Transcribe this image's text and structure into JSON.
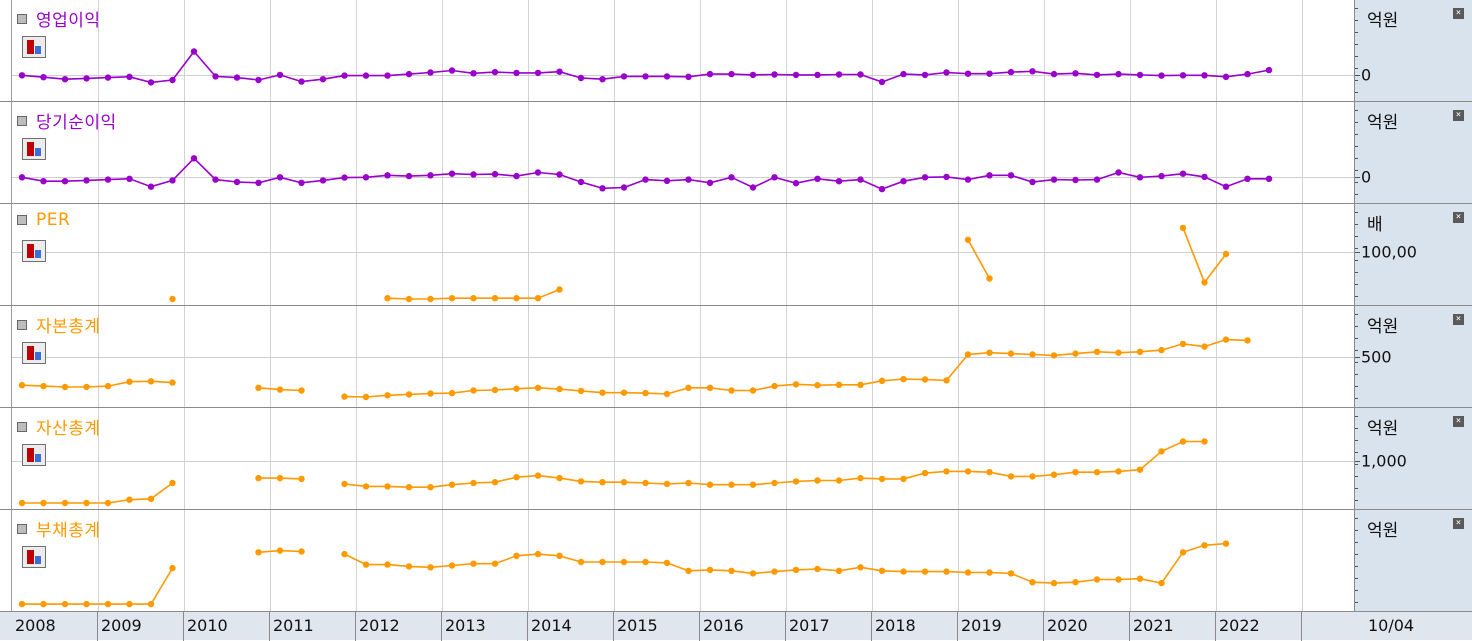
{
  "colors": {
    "purple": "#9900cc",
    "orange": "#ff9900",
    "axis_bg": "#d9e3ee",
    "grid": "#d3d3d3"
  },
  "x_axis": {
    "years": [
      "2008",
      "2009",
      "2010",
      "2011",
      "2012",
      "2013",
      "2014",
      "2015",
      "2016",
      "2017",
      "2018",
      "2019",
      "2020",
      "2021",
      "2022"
    ],
    "current_date": "10/04"
  },
  "icons": {
    "chart_toggle": "chart-toggle-icon",
    "close": "close-icon",
    "legend_marker": "legend-square-icon"
  },
  "chart_data": [
    {
      "type": "line",
      "title": "영업이익",
      "unit": "억원",
      "color": "#9900cc",
      "yticks": [
        {
          "label": "0",
          "value": 0
        }
      ],
      "ylim": [
        -50,
        150
      ],
      "values": [
        0,
        -5,
        -10,
        -8,
        -6,
        -4,
        -18,
        -12,
        60,
        -3,
        -6,
        -12,
        1,
        -16,
        -10,
        -1,
        -1,
        -1,
        3,
        7,
        12,
        5,
        8,
        6,
        6,
        9,
        -7,
        -10,
        -3,
        -3,
        -3,
        -4,
        3,
        3,
        1,
        2,
        1,
        1,
        2,
        2,
        -17,
        3,
        1,
        7,
        4,
        4,
        8,
        10,
        3,
        5,
        1,
        3,
        1,
        -1,
        0,
        0,
        -4,
        3,
        13
      ],
      "start_quarter": "2008Q1"
    },
    {
      "type": "line",
      "title": "당기순이익",
      "unit": "억원",
      "color": "#9900cc",
      "yticks": [
        {
          "label": "0",
          "value": 0
        }
      ],
      "ylim": [
        -50,
        150
      ],
      "values": [
        0,
        -10,
        -10,
        -8,
        -6,
        -4,
        -24,
        -8,
        48,
        -6,
        -12,
        -14,
        0,
        -14,
        -8,
        -1,
        0,
        5,
        3,
        5,
        9,
        7,
        8,
        3,
        12,
        7,
        -12,
        -28,
        -26,
        -6,
        -9,
        -6,
        -14,
        0,
        -26,
        0,
        -15,
        -4,
        -10,
        -6,
        -30,
        -10,
        0,
        1,
        -6,
        5,
        5,
        -12,
        -6,
        -7,
        -6,
        12,
        0,
        3,
        9,
        1,
        -24,
        -4,
        -4
      ],
      "start_quarter": "2008Q1"
    },
    {
      "type": "line",
      "title": "PER",
      "unit": "배",
      "color": "#ff9900",
      "yticks": [
        {
          "label": "100,00",
          "value": 10000
        }
      ],
      "ylim": [
        4000,
        14000
      ],
      "values": [
        null,
        null,
        null,
        null,
        null,
        null,
        null,
        4000,
        null,
        null,
        null,
        null,
        null,
        null,
        null,
        null,
        null,
        4100,
        4000,
        4000,
        4100,
        4100,
        4100,
        4100,
        4100,
        5200,
        null,
        null,
        null,
        null,
        null,
        null,
        null,
        null,
        null,
        null,
        null,
        null,
        null,
        null,
        null,
        null,
        null,
        null,
        11500,
        6600,
        null,
        null,
        null,
        null,
        null,
        null,
        null,
        null,
        13000,
        6100,
        9700
      ],
      "start_quarter": "2008Q1"
    },
    {
      "type": "line",
      "title": "자본총계",
      "unit": "억원",
      "color": "#ff9900",
      "yticks": [
        {
          "label": "500",
          "value": 500
        }
      ],
      "ylim": [
        0,
        900
      ],
      "values": [
        180,
        170,
        160,
        160,
        170,
        220,
        225,
        210,
        null,
        null,
        null,
        150,
        130,
        120,
        null,
        50,
        45,
        65,
        75,
        85,
        90,
        120,
        125,
        140,
        150,
        135,
        115,
        95,
        95,
        90,
        80,
        150,
        150,
        120,
        120,
        170,
        190,
        180,
        185,
        185,
        230,
        250,
        245,
        235,
        530,
        550,
        540,
        530,
        520,
        540,
        560,
        550,
        560,
        580,
        650,
        620,
        700,
        690
      ],
      "start_quarter": "2008Q1"
    },
    {
      "type": "line",
      "title": "자산총계",
      "unit": "억원",
      "color": "#ff9900",
      "yticks": [
        {
          "label": "1,000",
          "value": 1000
        }
      ],
      "ylim": [
        500,
        1450
      ],
      "values": [
        500,
        500,
        500,
        500,
        500,
        540,
        550,
        740,
        null,
        null,
        null,
        800,
        800,
        790,
        null,
        730,
        700,
        700,
        690,
        690,
        720,
        740,
        750,
        810,
        830,
        800,
        760,
        750,
        750,
        740,
        730,
        740,
        720,
        720,
        720,
        740,
        760,
        770,
        770,
        800,
        790,
        790,
        860,
        880,
        880,
        870,
        820,
        820,
        840,
        870,
        870,
        880,
        900,
        1120,
        1240,
        1240
      ],
      "start_quarter": "2008Q1"
    },
    {
      "type": "line",
      "title": "부채총계",
      "unit": "억원",
      "color": "#ff9900",
      "yticks": [],
      "ylim": [
        0,
        900
      ],
      "values": [
        10,
        10,
        10,
        10,
        10,
        10,
        10,
        420,
        null,
        null,
        null,
        600,
        620,
        610,
        null,
        580,
        460,
        460,
        440,
        430,
        450,
        470,
        470,
        560,
        580,
        560,
        490,
        490,
        490,
        490,
        480,
        390,
        400,
        390,
        360,
        380,
        400,
        410,
        390,
        430,
        390,
        380,
        380,
        380,
        370,
        370,
        360,
        260,
        250,
        260,
        290,
        290,
        300,
        250,
        600,
        680,
        700
      ],
      "start_quarter": "2008Q1"
    }
  ]
}
